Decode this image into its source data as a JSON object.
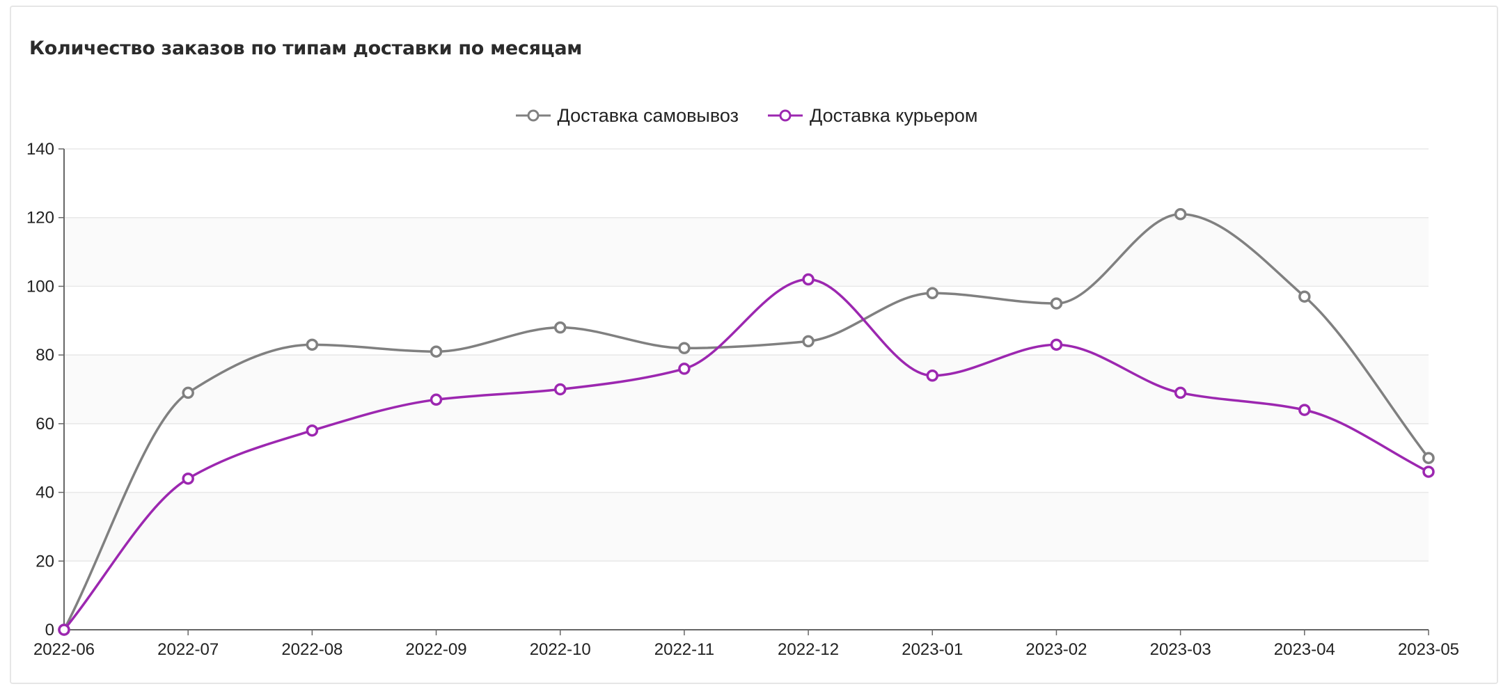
{
  "chart_data": {
    "type": "line",
    "title": "Количество заказов по типам доставки по месяцам",
    "xlabel": "",
    "ylabel": "",
    "x": [
      "2022-06",
      "2022-07",
      "2022-08",
      "2022-09",
      "2022-10",
      "2022-11",
      "2022-12",
      "2023-01",
      "2023-02",
      "2023-03",
      "2023-04",
      "2023-05"
    ],
    "ylim": [
      0,
      140
    ],
    "yticks": [
      "0",
      "20",
      "40",
      "60",
      "80",
      "100",
      "120",
      "140"
    ],
    "grid": true,
    "legend_position": "top-center",
    "series": [
      {
        "name": "Доставка самовывоз",
        "color": "#808080",
        "values": [
          0,
          69,
          83,
          81,
          88,
          82,
          84,
          98,
          95,
          121,
          97,
          50
        ]
      },
      {
        "name": "Доставка курьером",
        "color": "#9c27b0",
        "values": [
          0,
          44,
          58,
          67,
          70,
          76,
          102,
          74,
          83,
          69,
          64,
          46
        ]
      }
    ]
  },
  "colors": {
    "plot_band": "#fafafa",
    "grid": "#e8e8e8",
    "axis": "#666666"
  }
}
